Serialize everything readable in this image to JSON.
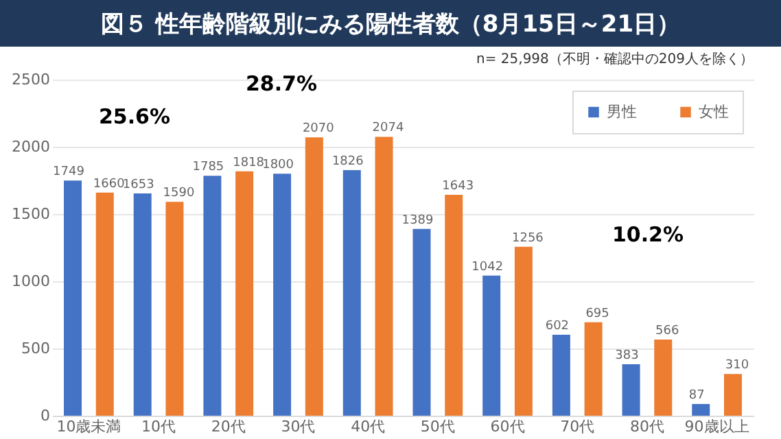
{
  "chart_data": {
    "type": "bar",
    "title": "図５ 性年齢階級別にみる陽性者数（8月15日～21日）",
    "subtitle": "n= 25,998（不明・確認中の209人を除く）",
    "categories": [
      "10歳未満",
      "10代",
      "20代",
      "30代",
      "40代",
      "50代",
      "60代",
      "70代",
      "80代",
      "90歳以上"
    ],
    "series": [
      {
        "name": "男性",
        "color": "#4472c4",
        "values": [
          1749,
          1653,
          1785,
          1800,
          1826,
          1389,
          1042,
          602,
          383,
          87
        ]
      },
      {
        "name": "女性",
        "color": "#ed7d31",
        "values": [
          1660,
          1590,
          1818,
          2070,
          2074,
          1643,
          1256,
          695,
          566,
          310
        ]
      }
    ],
    "ylim": [
      0,
      2500
    ],
    "yticks": [
      0,
      500,
      1000,
      1500,
      2000,
      2500
    ],
    "grid": "y",
    "legend": "top right",
    "data_labels": true,
    "annotations": [
      "25.6%",
      "28.7%",
      "10.2%"
    ]
  }
}
